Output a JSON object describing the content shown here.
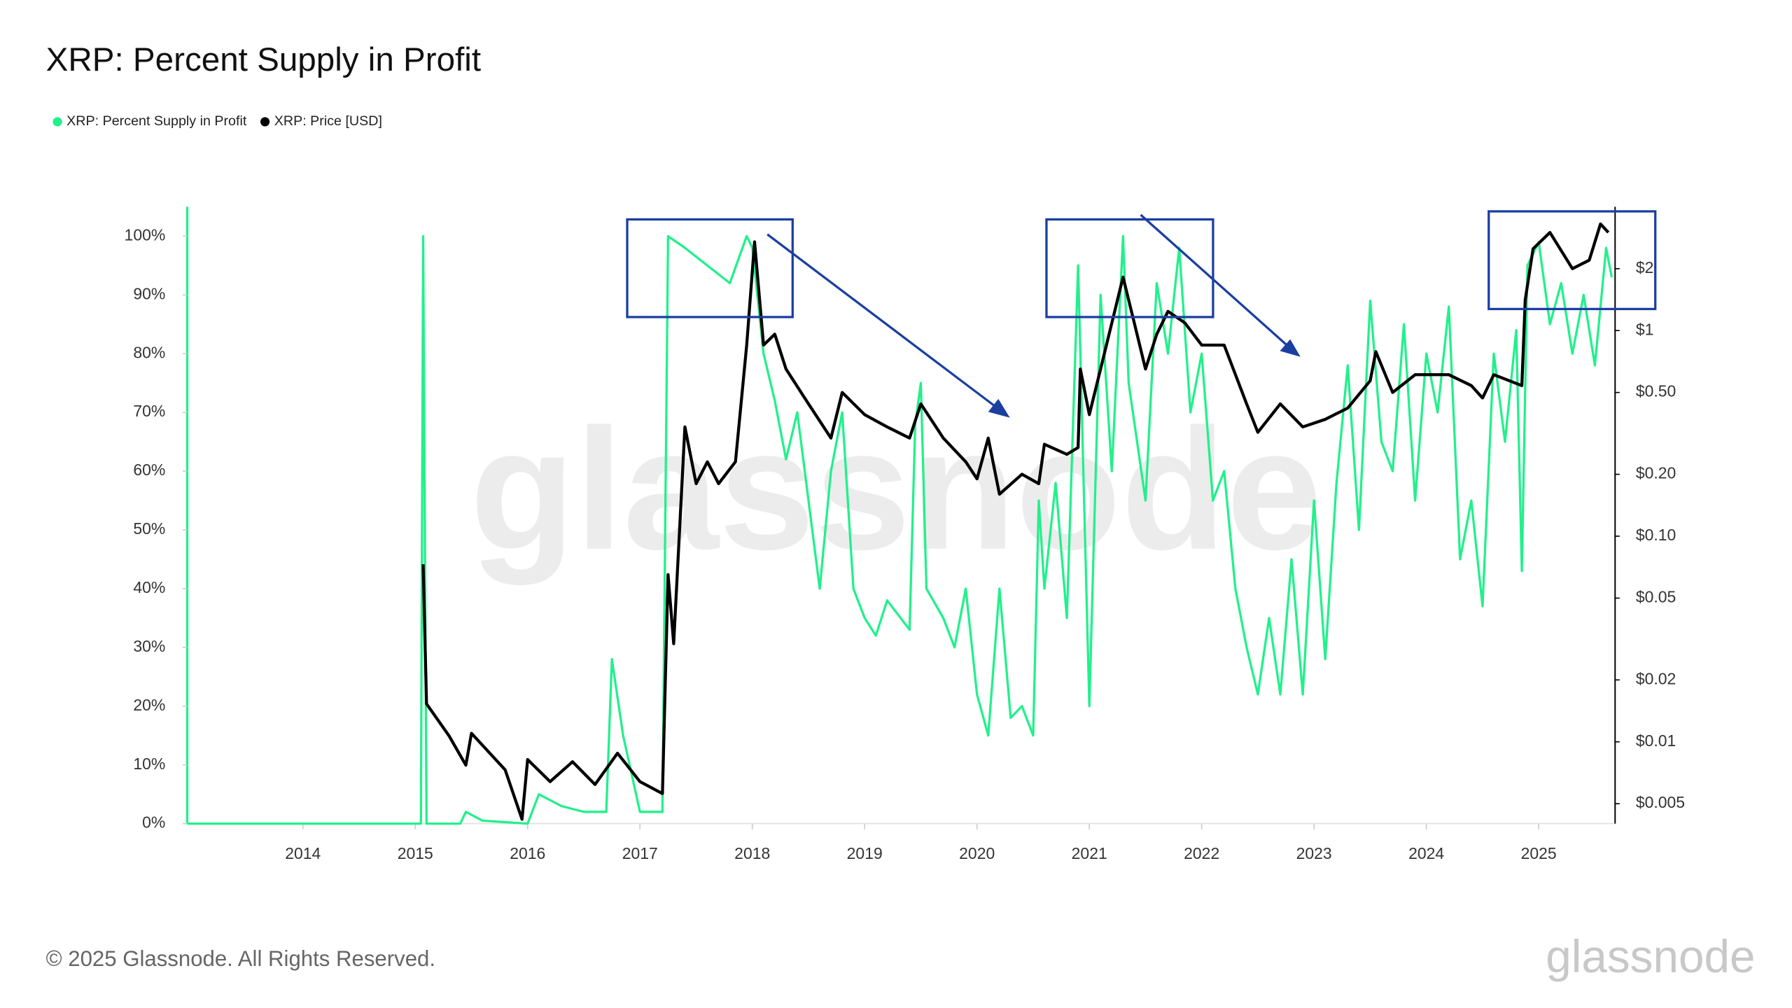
{
  "chart_data": {
    "type": "line",
    "title": "XRP: Percent Supply in Profit",
    "legend": "top-left",
    "grid": false,
    "watermark": "glassnode",
    "footer": "© 2025 Glassnode. All Rights Reserved.",
    "logo": "glassnode",
    "xlim": [
      2012.97,
      2025.68
    ],
    "xticks": [
      2014,
      2015,
      2016,
      2017,
      2018,
      2019,
      2020,
      2021,
      2022,
      2023,
      2024,
      2025
    ],
    "ylim": [
      0,
      105
    ],
    "yticks": [
      {
        "value": 0,
        "label": "0%"
      },
      {
        "value": 10,
        "label": "10%"
      },
      {
        "value": 20,
        "label": "20%"
      },
      {
        "value": 30,
        "label": "30%"
      },
      {
        "value": 40,
        "label": "40%"
      },
      {
        "value": 50,
        "label": "50%"
      },
      {
        "value": 60,
        "label": "60%"
      },
      {
        "value": 70,
        "label": "70%"
      },
      {
        "value": 80,
        "label": "80%"
      },
      {
        "value": 90,
        "label": "90%"
      },
      {
        "value": 100,
        "label": "100%"
      }
    ],
    "y2lim": [
      0.004,
      4
    ],
    "y2log": true,
    "y2ticks": [
      {
        "value": 0.005,
        "label": "$0.005"
      },
      {
        "value": 0.01,
        "label": "$0.01"
      },
      {
        "value": 0.02,
        "label": "$0.02"
      },
      {
        "value": 0.05,
        "label": "$0.05"
      },
      {
        "value": 0.1,
        "label": "$0.10"
      },
      {
        "value": 0.2,
        "label": "$0.20"
      },
      {
        "value": 0.5,
        "label": "$0.50"
      },
      {
        "value": 1,
        "label": "$1"
      },
      {
        "value": 2,
        "label": "$2"
      }
    ],
    "series": [
      {
        "name": "XRP: Percent Supply in Profit",
        "color": "#22f08c",
        "x": [
          2012.97,
          2015.05,
          2015.07,
          2015.1,
          2015.4,
          2015.45,
          2015.6,
          2016.0,
          2016.1,
          2016.3,
          2016.5,
          2016.7,
          2016.75,
          2016.85,
          2017.0,
          2017.2,
          2017.25,
          2017.4,
          2017.6,
          2017.8,
          2017.95,
          2018.0,
          2018.1,
          2018.2,
          2018.3,
          2018.4,
          2018.5,
          2018.6,
          2018.7,
          2018.8,
          2018.9,
          2019.0,
          2019.1,
          2019.2,
          2019.4,
          2019.45,
          2019.5,
          2019.55,
          2019.7,
          2019.8,
          2019.9,
          2020.0,
          2020.1,
          2020.2,
          2020.3,
          2020.4,
          2020.5,
          2020.55,
          2020.6,
          2020.7,
          2020.8,
          2020.9,
          2021.0,
          2021.1,
          2021.2,
          2021.3,
          2021.35,
          2021.5,
          2021.6,
          2021.7,
          2021.8,
          2021.9,
          2022.0,
          2022.1,
          2022.2,
          2022.3,
          2022.4,
          2022.5,
          2022.6,
          2022.7,
          2022.8,
          2022.9,
          2023.0,
          2023.1,
          2023.2,
          2023.3,
          2023.4,
          2023.5,
          2023.6,
          2023.7,
          2023.8,
          2023.9,
          2024.0,
          2024.1,
          2024.2,
          2024.3,
          2024.4,
          2024.5,
          2024.6,
          2024.7,
          2024.8,
          2024.85,
          2024.9,
          2025.0,
          2025.1,
          2025.2,
          2025.3,
          2025.4,
          2025.5,
          2025.6,
          2025.65
        ],
        "values": [
          0,
          0,
          100,
          0,
          0,
          2,
          0.5,
          0,
          5,
          3,
          2,
          2,
          28,
          15,
          2,
          2,
          100,
          98,
          95,
          92,
          100,
          98,
          80,
          72,
          62,
          70,
          55,
          40,
          60,
          70,
          40,
          35,
          32,
          38,
          33,
          68,
          75,
          40,
          35,
          30,
          40,
          22,
          15,
          40,
          18,
          20,
          15,
          55,
          40,
          58,
          35,
          95,
          20,
          90,
          60,
          100,
          75,
          55,
          92,
          80,
          98,
          70,
          80,
          55,
          60,
          40,
          30,
          22,
          35,
          22,
          45,
          22,
          55,
          28,
          58,
          78,
          50,
          89,
          65,
          60,
          85,
          55,
          80,
          70,
          88,
          45,
          55,
          37,
          80,
          65,
          84,
          43,
          95,
          99,
          85,
          92,
          80,
          90,
          78,
          98,
          93
        ]
      },
      {
        "name": "XRP: Price [USD]",
        "color": "#000000",
        "axis": "y2",
        "x": [
          2015.07,
          2015.1,
          2015.3,
          2015.45,
          2015.5,
          2015.8,
          2015.95,
          2016.0,
          2016.2,
          2016.4,
          2016.6,
          2016.8,
          2017.0,
          2017.2,
          2017.25,
          2017.3,
          2017.4,
          2017.5,
          2017.6,
          2017.7,
          2017.85,
          2017.95,
          2018.02,
          2018.1,
          2018.2,
          2018.3,
          2018.5,
          2018.7,
          2018.8,
          2019.0,
          2019.2,
          2019.4,
          2019.5,
          2019.7,
          2019.9,
          2020.0,
          2020.1,
          2020.2,
          2020.4,
          2020.55,
          2020.6,
          2020.8,
          2020.9,
          2020.92,
          2021.0,
          2021.1,
          2021.3,
          2021.4,
          2021.5,
          2021.6,
          2021.7,
          2021.85,
          2022.0,
          2022.2,
          2022.4,
          2022.5,
          2022.7,
          2022.9,
          2023.1,
          2023.3,
          2023.5,
          2023.55,
          2023.7,
          2023.9,
          2024.0,
          2024.2,
          2024.4,
          2024.5,
          2024.6,
          2024.85,
          2024.88,
          2024.95,
          2025.1,
          2025.3,
          2025.45,
          2025.55,
          2025.62
        ],
        "values": [
          0.073,
          0.0153,
          0.0107,
          0.0077,
          0.011,
          0.0073,
          0.0042,
          0.0082,
          0.0064,
          0.008,
          0.0062,
          0.0088,
          0.0064,
          0.0056,
          0.065,
          0.03,
          0.34,
          0.18,
          0.23,
          0.18,
          0.23,
          0.85,
          2.7,
          0.85,
          0.96,
          0.65,
          0.44,
          0.3,
          0.5,
          0.39,
          0.34,
          0.3,
          0.44,
          0.3,
          0.23,
          0.19,
          0.3,
          0.16,
          0.2,
          0.18,
          0.28,
          0.25,
          0.27,
          0.65,
          0.39,
          0.65,
          1.82,
          1.09,
          0.65,
          0.96,
          1.24,
          1.09,
          0.85,
          0.85,
          0.44,
          0.32,
          0.44,
          0.34,
          0.37,
          0.42,
          0.57,
          0.79,
          0.5,
          0.61,
          0.61,
          0.61,
          0.54,
          0.47,
          0.61,
          0.54,
          1.41,
          2.5,
          3.0,
          2.0,
          2.2,
          3.3,
          3.0
        ]
      }
    ]
  }
}
